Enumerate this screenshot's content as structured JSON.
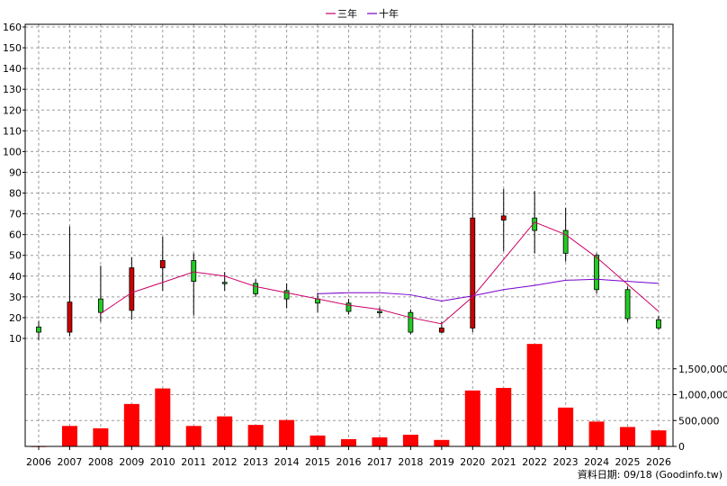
{
  "chart_data": {
    "type": "candlestick",
    "title": "",
    "years": [
      "2006",
      "2007",
      "2008",
      "2009",
      "2010",
      "2011",
      "2012",
      "2013",
      "2014",
      "2015",
      "2016",
      "2017",
      "2018",
      "2019",
      "2020",
      "2021",
      "2022",
      "2023",
      "2024",
      "2025",
      "2026"
    ],
    "price_axis": {
      "ticks": [
        10,
        20,
        30,
        40,
        50,
        60,
        70,
        80,
        90,
        100,
        110,
        120,
        130,
        140,
        150,
        160
      ]
    },
    "volume_axis": {
      "ticks": [
        0,
        500000,
        1000000,
        1500000
      ],
      "tick_labels": [
        "0",
        "500,000",
        "1,000,000",
        "1,500,000"
      ]
    },
    "colors": {
      "up": "#cc0000",
      "down": "#22cc22",
      "ma3": "#cc0066",
      "ma10": "#7700cc",
      "volume": "#ff0000"
    },
    "candles": [
      {
        "year": "2006",
        "open": 15.5,
        "close": 13,
        "high": 18.5,
        "low": 9
      },
      {
        "year": "2007",
        "open": 13,
        "close": 27.5,
        "high": 64,
        "low": 11
      },
      {
        "year": "2008",
        "open": 29,
        "close": 22.5,
        "high": 45,
        "low": 18
      },
      {
        "year": "2009",
        "open": 23.5,
        "close": 44,
        "high": 49,
        "low": 19
      },
      {
        "year": "2010",
        "open": 44,
        "close": 47.5,
        "high": 59,
        "low": 33
      },
      {
        "year": "2011",
        "open": 47.5,
        "close": 37.5,
        "high": 51,
        "low": 21
      },
      {
        "year": "2012",
        "open": 37,
        "close": 36.5,
        "high": 42,
        "low": 33
      },
      {
        "year": "2013",
        "open": 36.5,
        "close": 31.5,
        "high": 38.5,
        "low": 30
      },
      {
        "year": "2014",
        "open": 33,
        "close": 29,
        "high": 36.5,
        "low": 24.5
      },
      {
        "year": "2015",
        "open": 29,
        "close": 27,
        "high": 32,
        "low": 22.5
      },
      {
        "year": "2016",
        "open": 27,
        "close": 23,
        "high": 29,
        "low": 21.5
      },
      {
        "year": "2017",
        "open": 23,
        "close": 22.5,
        "high": 25,
        "low": 20
      },
      {
        "year": "2018",
        "open": 22.5,
        "close": 13,
        "high": 24,
        "low": 12
      },
      {
        "year": "2019",
        "open": 13,
        "close": 15,
        "high": 18,
        "low": 12.5
      },
      {
        "year": "2020",
        "open": 15,
        "close": 68,
        "high": 159,
        "low": 13
      },
      {
        "year": "2021",
        "open": 67,
        "close": 69,
        "high": 82,
        "low": 52
      },
      {
        "year": "2022",
        "open": 68,
        "close": 62,
        "high": 81,
        "low": 51
      },
      {
        "year": "2023",
        "open": 62,
        "close": 51,
        "high": 73,
        "low": 47
      },
      {
        "year": "2024",
        "open": 50,
        "close": 33.5,
        "high": 51,
        "low": 31.5
      },
      {
        "year": "2025",
        "open": 33.5,
        "close": 19.5,
        "high": 35,
        "low": 18
      },
      {
        "year": "2026",
        "open": 19,
        "close": 15,
        "high": 21,
        "low": 14
      }
    ],
    "ma3": [
      null,
      null,
      22,
      32,
      37,
      42,
      40,
      35,
      32,
      29,
      26,
      24,
      20,
      17,
      30,
      48,
      66,
      60,
      49,
      36,
      23
    ],
    "ma10": [
      null,
      null,
      null,
      null,
      null,
      null,
      null,
      null,
      null,
      31.5,
      32,
      32,
      31,
      28,
      30.5,
      33.5,
      35.5,
      38,
      38.5,
      37.5,
      36.5
    ],
    "volume": [
      5000,
      395000,
      350000,
      820000,
      1120000,
      395000,
      580000,
      415000,
      510000,
      210000,
      140000,
      175000,
      225000,
      125000,
      1080000,
      1130000,
      1980000,
      750000,
      480000,
      375000,
      310000
    ],
    "legend": [
      {
        "name": "三年",
        "color": "#cc0066"
      },
      {
        "name": "十年",
        "color": "#7700cc"
      }
    ],
    "legend_position": "top-center",
    "grid": true
  },
  "footer_note": "資料日期: 09/18 (Goodinfo.tw)"
}
